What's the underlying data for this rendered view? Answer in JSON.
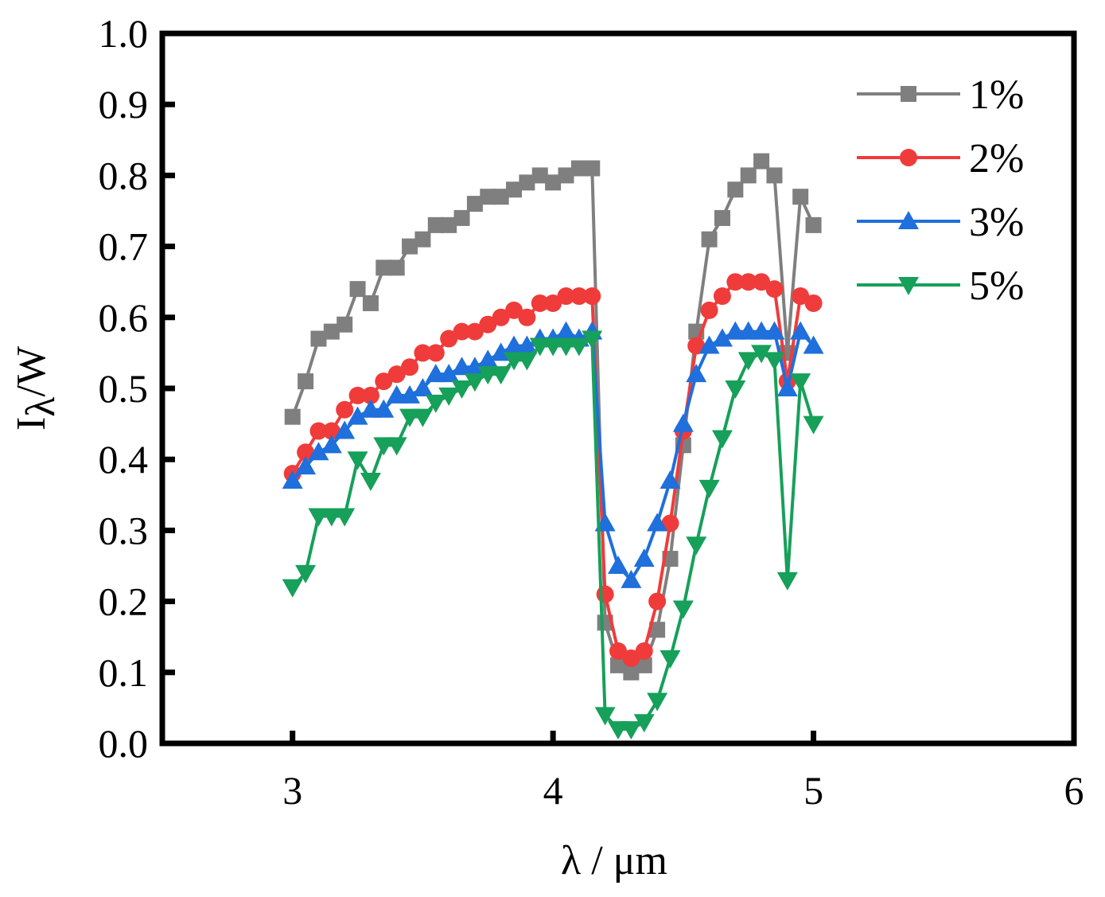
{
  "chart_data": {
    "type": "line",
    "title": "",
    "xlabel": "λ / μm",
    "ylabel_main": "I",
    "ylabel_sub": "λ",
    "ylabel_tail": "/W",
    "xlim": [
      2.5,
      6
    ],
    "ylim": [
      0,
      1
    ],
    "xticks": [
      3,
      4,
      5,
      6
    ],
    "yticks": [
      0.0,
      0.1,
      0.2,
      0.3,
      0.4,
      0.5,
      0.6,
      0.7,
      0.8,
      0.9,
      1.0
    ],
    "xtick_labels": [
      "3",
      "4",
      "5",
      "6"
    ],
    "ytick_labels": [
      "0.0",
      "0.1",
      "0.2",
      "0.3",
      "0.4",
      "0.5",
      "0.6",
      "0.7",
      "0.8",
      "0.9",
      "1.0"
    ],
    "grid": false,
    "legend_position": "top-right",
    "x": [
      3.0,
      3.05,
      3.1,
      3.15,
      3.2,
      3.25,
      3.3,
      3.35,
      3.4,
      3.45,
      3.5,
      3.55,
      3.6,
      3.65,
      3.7,
      3.75,
      3.8,
      3.85,
      3.9,
      3.95,
      4.0,
      4.05,
      4.1,
      4.15,
      4.2,
      4.25,
      4.3,
      4.35,
      4.4,
      4.45,
      4.5,
      4.55,
      4.6,
      4.65,
      4.7,
      4.75,
      4.8,
      4.85,
      4.9,
      4.95,
      5.0
    ],
    "series": [
      {
        "name": "1%",
        "color": "#7f7f7f",
        "marker": "square",
        "values": [
          0.46,
          0.51,
          0.57,
          0.58,
          0.59,
          0.64,
          0.62,
          0.67,
          0.67,
          0.7,
          0.71,
          0.73,
          0.73,
          0.74,
          0.76,
          0.77,
          0.77,
          0.78,
          0.79,
          0.8,
          0.79,
          0.8,
          0.81,
          0.81,
          0.17,
          0.11,
          0.1,
          0.11,
          0.16,
          0.26,
          0.42,
          0.58,
          0.71,
          0.74,
          0.78,
          0.8,
          0.82,
          0.8,
          0.55,
          0.77,
          0.73
        ]
      },
      {
        "name": "2%",
        "color": "#f03b3b",
        "marker": "circle",
        "values": [
          0.38,
          0.41,
          0.44,
          0.44,
          0.47,
          0.49,
          0.49,
          0.51,
          0.52,
          0.53,
          0.55,
          0.55,
          0.57,
          0.58,
          0.58,
          0.59,
          0.6,
          0.61,
          0.6,
          0.62,
          0.62,
          0.63,
          0.63,
          0.63,
          0.21,
          0.13,
          0.12,
          0.13,
          0.2,
          0.31,
          0.44,
          0.56,
          0.61,
          0.63,
          0.65,
          0.65,
          0.65,
          0.64,
          0.51,
          0.63,
          0.62
        ]
      },
      {
        "name": "3%",
        "color": "#1f6fdc",
        "marker": "triangle-up",
        "values": [
          0.37,
          0.39,
          0.41,
          0.42,
          0.44,
          0.46,
          0.47,
          0.47,
          0.49,
          0.49,
          0.5,
          0.52,
          0.52,
          0.53,
          0.53,
          0.54,
          0.55,
          0.56,
          0.56,
          0.57,
          0.57,
          0.58,
          0.57,
          0.58,
          0.31,
          0.25,
          0.23,
          0.26,
          0.31,
          0.37,
          0.45,
          0.52,
          0.56,
          0.57,
          0.58,
          0.58,
          0.58,
          0.58,
          0.5,
          0.58,
          0.56
        ]
      },
      {
        "name": "5%",
        "color": "#16a05a",
        "marker": "triangle-down",
        "values": [
          0.22,
          0.24,
          0.32,
          0.32,
          0.32,
          0.4,
          0.37,
          0.42,
          0.42,
          0.46,
          0.46,
          0.48,
          0.49,
          0.5,
          0.51,
          0.52,
          0.52,
          0.54,
          0.54,
          0.56,
          0.56,
          0.56,
          0.56,
          0.57,
          0.04,
          0.02,
          0.02,
          0.03,
          0.06,
          0.12,
          0.19,
          0.28,
          0.36,
          0.43,
          0.5,
          0.54,
          0.55,
          0.54,
          0.23,
          0.51,
          0.45
        ]
      }
    ]
  }
}
